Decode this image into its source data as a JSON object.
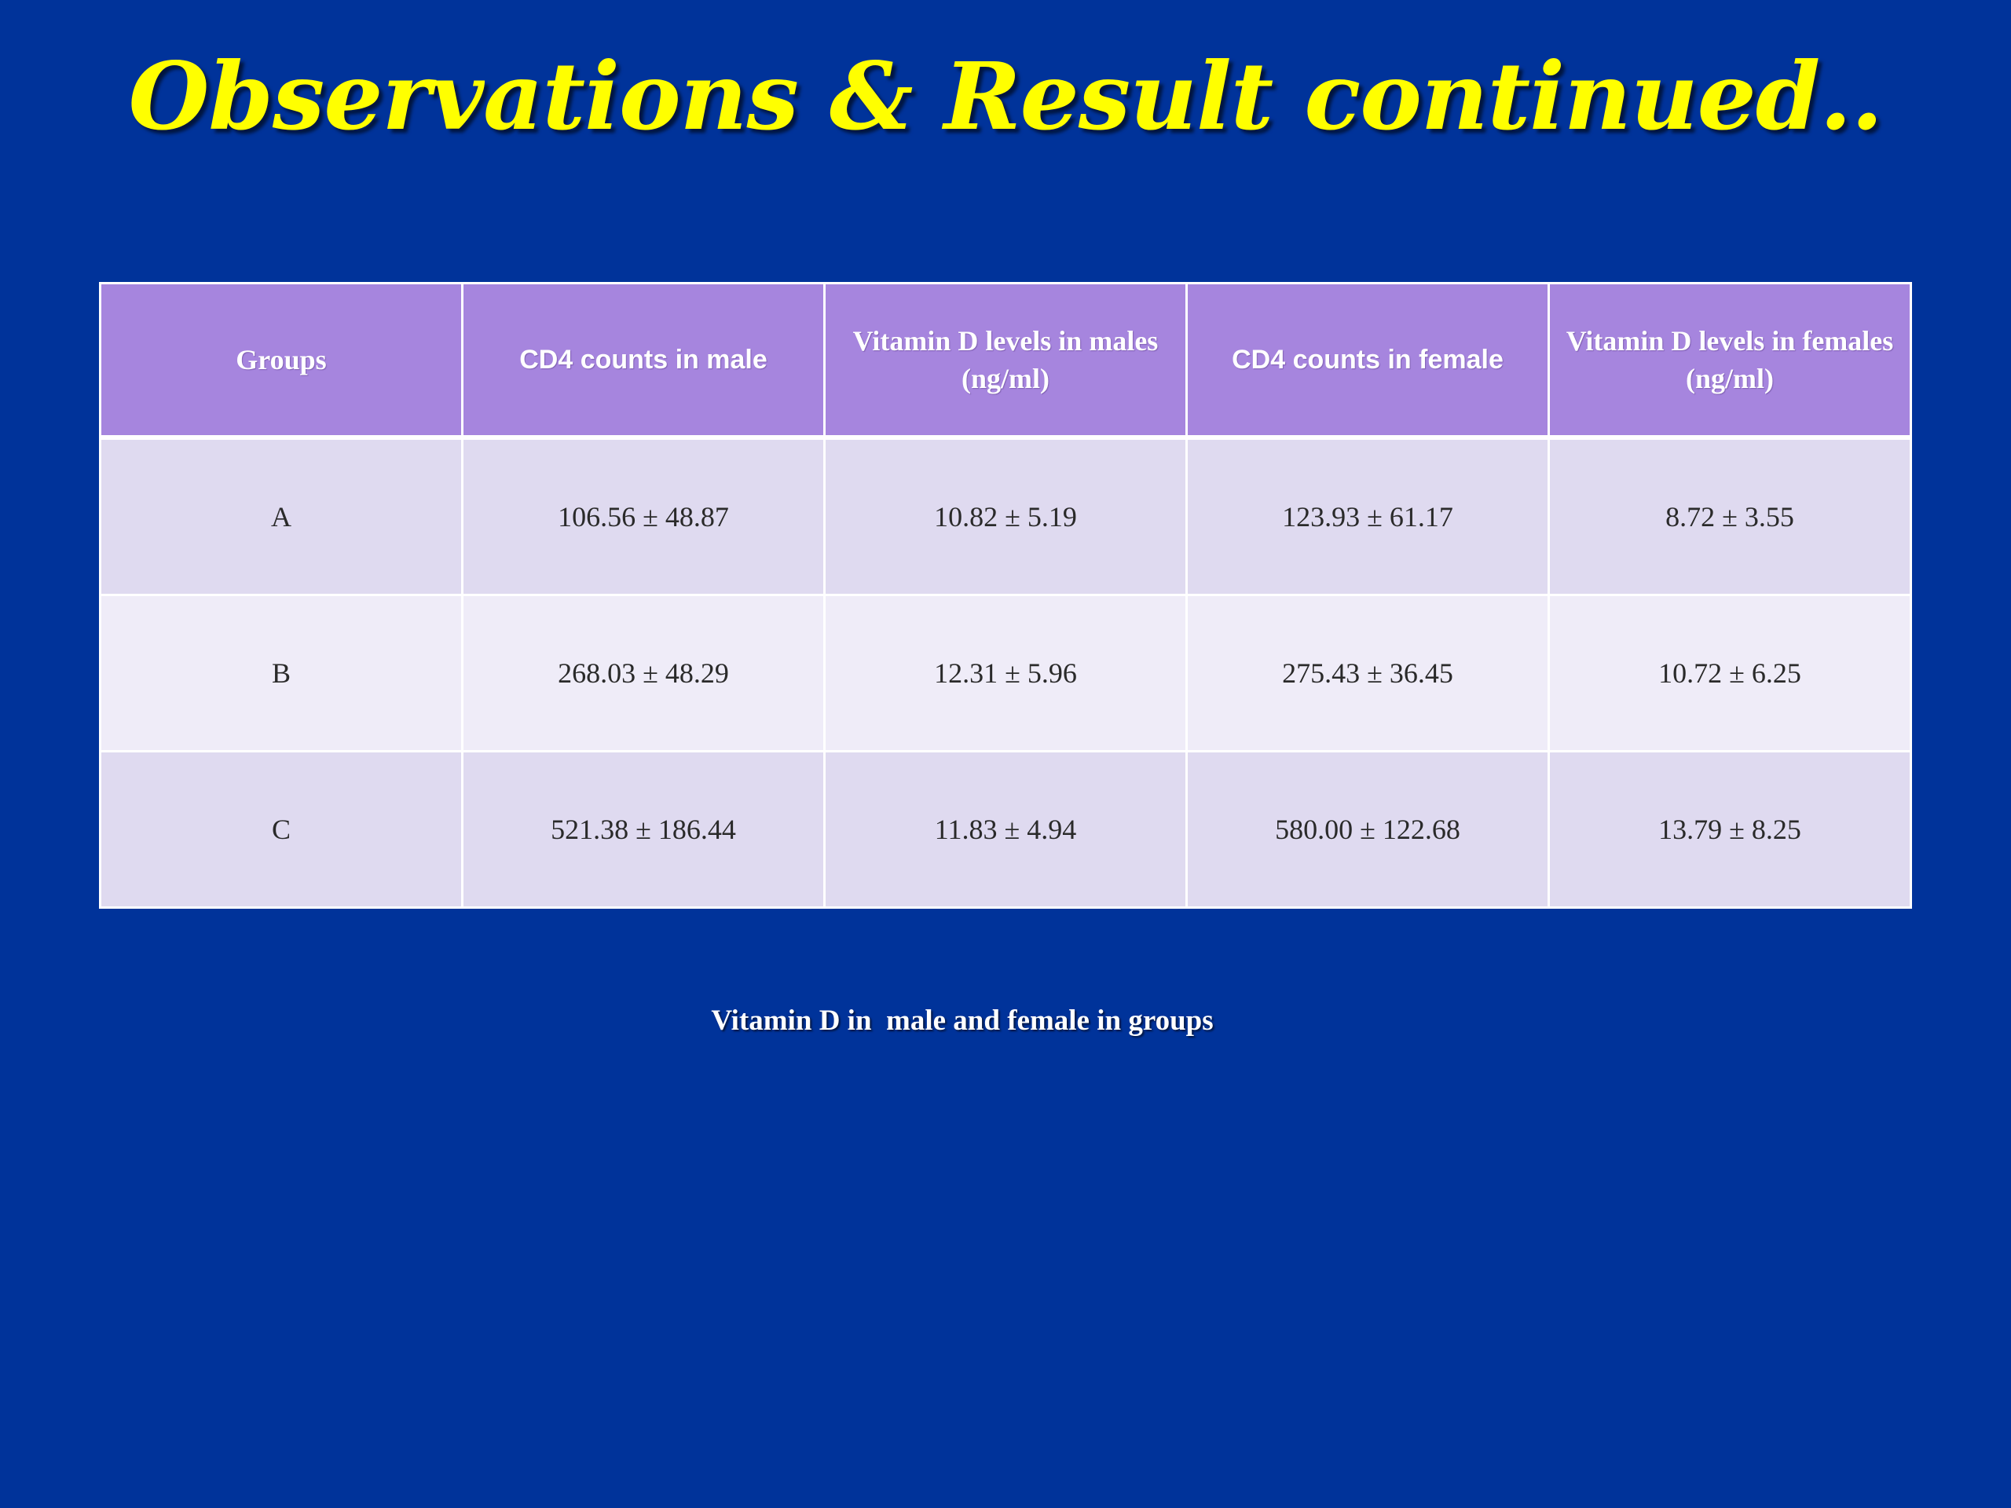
{
  "slide": {
    "title": "Observations & Result continued..",
    "caption": "Vitamin D in  male and female in groups"
  },
  "table": {
    "headers": [
      "Groups",
      "CD4 counts in male",
      "Vitamin D levels in males (ng/ml)",
      "CD4 counts in female",
      "Vitamin D levels in females (ng/ml)"
    ],
    "rows": [
      [
        "A",
        "106.56 ± 48.87",
        "10.82 ± 5.19",
        "123.93 ± 61.17",
        "8.72 ± 3.55"
      ],
      [
        "B",
        "268.03 ± 48.29",
        "12.31 ± 5.96",
        "275.43 ± 36.45",
        "10.72 ± 6.25"
      ],
      [
        "C",
        "521.38 ± 186.44",
        "11.83 ± 4.94",
        "580.00 ± 122.68",
        "13.79 ± 8.25"
      ]
    ]
  },
  "colors": {
    "background": "#00339a",
    "title": "#ffff00",
    "header_fill": "#a685de",
    "row_odd": "#dfdaf0",
    "row_even": "#efecf8"
  }
}
